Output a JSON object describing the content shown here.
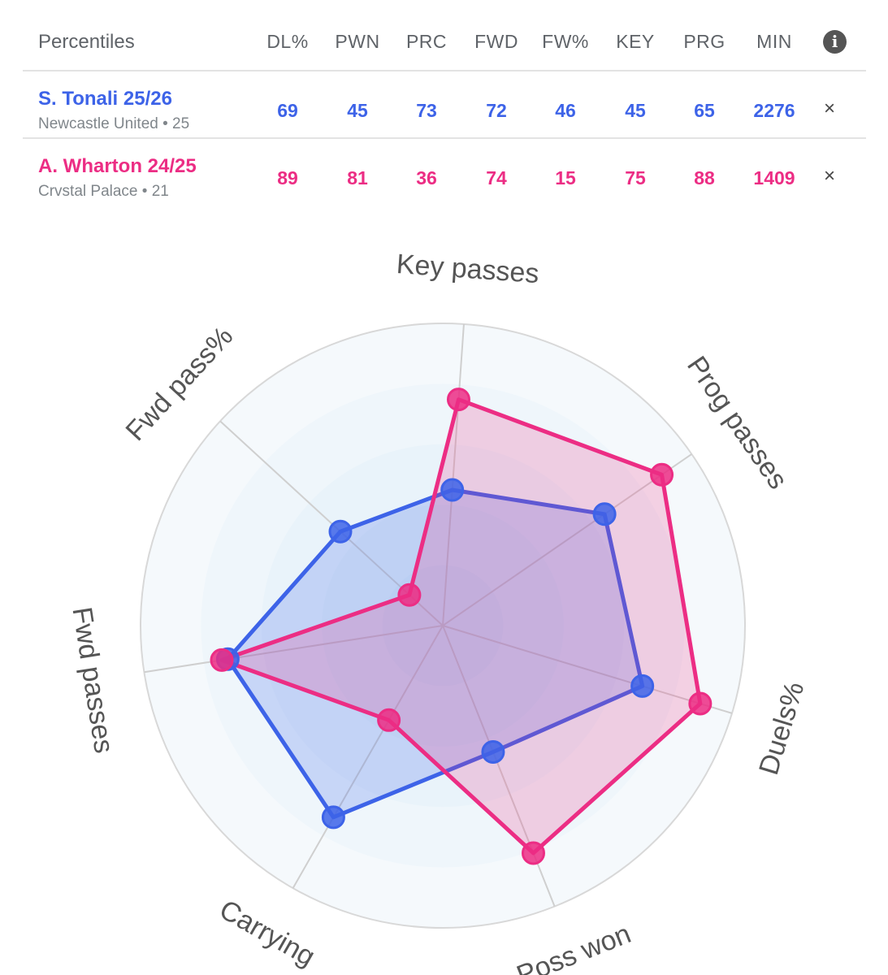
{
  "table": {
    "title": "Percentiles",
    "columns": [
      "DL%",
      "PWN",
      "PRC",
      "FWD",
      "FW%",
      "KEY",
      "PRG",
      "MIN"
    ],
    "info_icon": "info-icon",
    "players": [
      {
        "name": "S. Tonali 25/26",
        "subtitle": "Newcastle United • 25",
        "values": [
          "69",
          "45",
          "73",
          "72",
          "46",
          "45",
          "65",
          "2276"
        ],
        "remove_label": "×",
        "color": "#3d63e8"
      },
      {
        "name": "A. Wharton 24/25",
        "subtitle": "Crvstal Palace • 21",
        "values": [
          "89",
          "81",
          "36",
          "74",
          "15",
          "75",
          "88",
          "1409"
        ],
        "remove_label": "×",
        "color": "#ec2d84"
      }
    ]
  },
  "chart_data": {
    "type": "radar",
    "axes": [
      "Key passes",
      "Prog passes",
      "Duels%",
      "Poss won",
      "Carrying",
      "Fwd passes",
      "Fwd pass%"
    ],
    "range": [
      0,
      100
    ],
    "series": [
      {
        "name": "S. Tonali 25/26",
        "color": "#3d63e8",
        "values": [
          45,
          65,
          69,
          45,
          73,
          72,
          46
        ]
      },
      {
        "name": "A. Wharton 24/25",
        "color": "#ec2d84",
        "values": [
          75,
          88,
          89,
          81,
          36,
          74,
          15
        ]
      }
    ]
  }
}
